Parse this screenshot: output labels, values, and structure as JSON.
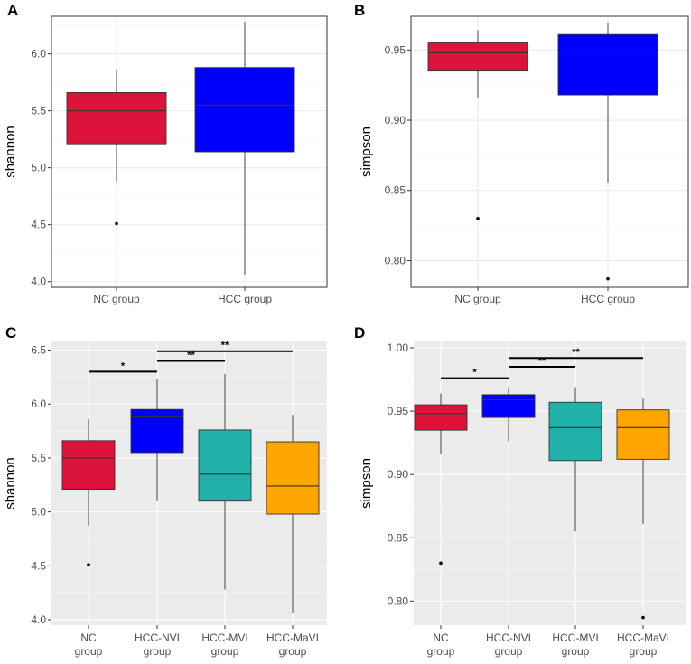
{
  "chart_data": [
    {
      "panel": "A",
      "type": "box",
      "theme": "bw",
      "ylabel": "shannon",
      "xlabel": "",
      "ylim": [
        3.95,
        6.33
      ],
      "yticks": [
        4.0,
        4.5,
        5.0,
        5.5,
        6.0
      ],
      "ytick_labels": [
        "4.0",
        "4.5",
        "5.0",
        "5.5",
        "6.0"
      ],
      "categories": [
        "NC group",
        "HCC group"
      ],
      "boxes": [
        {
          "name": "NC group",
          "color": "#DC143C",
          "whisker_low": 4.87,
          "q1": 5.21,
          "median": 5.5,
          "q3": 5.66,
          "whisker_high": 5.86,
          "outliers": [
            4.51
          ]
        },
        {
          "name": "HCC group",
          "color": "#0000FF",
          "whisker_low": 4.06,
          "q1": 5.14,
          "median": 5.55,
          "q3": 5.88,
          "whisker_high": 6.28,
          "outliers": []
        }
      ],
      "significance": []
    },
    {
      "panel": "B",
      "type": "box",
      "theme": "bw",
      "ylabel": "simpson",
      "xlabel": "",
      "ylim": [
        0.781,
        0.974
      ],
      "yticks": [
        0.8,
        0.85,
        0.9,
        0.95
      ],
      "ytick_labels": [
        "0.80",
        "0.85",
        "0.90",
        "0.95"
      ],
      "categories": [
        "NC group",
        "HCC group"
      ],
      "boxes": [
        {
          "name": "NC group",
          "color": "#DC143C",
          "whisker_low": 0.916,
          "q1": 0.935,
          "median": 0.948,
          "q3": 0.955,
          "whisker_high": 0.964,
          "outliers": [
            0.83
          ]
        },
        {
          "name": "HCC group",
          "color": "#0000FF",
          "whisker_low": 0.855,
          "q1": 0.918,
          "median": 0.949,
          "q3": 0.961,
          "whisker_high": 0.969,
          "outliers": [
            0.787
          ]
        }
      ],
      "significance": []
    },
    {
      "panel": "C",
      "type": "box",
      "theme": "gray",
      "ylabel": "shannon",
      "xlabel": "",
      "ylim": [
        3.95,
        6.58
      ],
      "yticks": [
        4.0,
        4.5,
        5.0,
        5.5,
        6.0,
        6.5
      ],
      "ytick_labels": [
        "4.0",
        "4.5",
        "5.0",
        "5.5",
        "6.0",
        "6.5"
      ],
      "categories": [
        "NC group",
        "HCC-NVI group",
        "HCC-MVI group",
        "HCC-MaVI group"
      ],
      "boxes": [
        {
          "name": "NC group",
          "line1": "NC",
          "line2": "group",
          "color": "#DC143C",
          "whisker_low": 4.87,
          "q1": 5.21,
          "median": 5.5,
          "q3": 5.66,
          "whisker_high": 5.86,
          "outliers": [
            4.51
          ]
        },
        {
          "name": "HCC-NVI group",
          "line1": "HCC-NVI",
          "line2": "group",
          "color": "#0000FF",
          "whisker_low": 5.1,
          "q1": 5.55,
          "median": 5.88,
          "q3": 5.95,
          "whisker_high": 6.23,
          "outliers": []
        },
        {
          "name": "HCC-MVI group",
          "line1": "HCC-MVI",
          "line2": "group",
          "color": "#20B2AA",
          "whisker_low": 4.28,
          "q1": 5.1,
          "median": 5.35,
          "q3": 5.76,
          "whisker_high": 6.28,
          "outliers": []
        },
        {
          "name": "HCC-MaVI group",
          "line1": "HCC-MaVI",
          "line2": "group",
          "color": "#FFA500",
          "whisker_low": 4.06,
          "q1": 4.98,
          "median": 5.24,
          "q3": 5.65,
          "whisker_high": 5.9,
          "outliers": []
        }
      ],
      "significance": [
        {
          "from": 0,
          "to": 1,
          "y": 6.3,
          "label": "*"
        },
        {
          "from": 1,
          "to": 2,
          "y": 6.4,
          "label": "**"
        },
        {
          "from": 1,
          "to": 3,
          "y": 6.49,
          "label": "**"
        }
      ]
    },
    {
      "panel": "D",
      "type": "box",
      "theme": "gray",
      "ylabel": "simpson",
      "xlabel": "",
      "ylim": [
        0.781,
        1.005
      ],
      "yticks": [
        0.8,
        0.85,
        0.9,
        0.95,
        1.0
      ],
      "ytick_labels": [
        "0.80",
        "0.85",
        "0.90",
        "0.95",
        "1.00"
      ],
      "categories": [
        "NC group",
        "HCC-NVI group",
        "HCC-MVI group",
        "HCC-MaVI group"
      ],
      "boxes": [
        {
          "name": "NC group",
          "line1": "NC",
          "line2": "group",
          "color": "#DC143C",
          "whisker_low": 0.916,
          "q1": 0.935,
          "median": 0.948,
          "q3": 0.955,
          "whisker_high": 0.964,
          "outliers": [
            0.83
          ]
        },
        {
          "name": "HCC-NVI group",
          "line1": "HCC-NVI",
          "line2": "group",
          "color": "#0000FF",
          "whisker_low": 0.926,
          "q1": 0.945,
          "median": 0.959,
          "q3": 0.963,
          "whisker_high": 0.969,
          "outliers": []
        },
        {
          "name": "HCC-MVI group",
          "line1": "HCC-MVI",
          "line2": "group",
          "color": "#20B2AA",
          "whisker_low": 0.855,
          "q1": 0.911,
          "median": 0.937,
          "q3": 0.957,
          "whisker_high": 0.969,
          "outliers": []
        },
        {
          "name": "HCC-MaVI group",
          "line1": "HCC-MaVI",
          "line2": "group",
          "color": "#FFA500",
          "whisker_low": 0.861,
          "q1": 0.912,
          "median": 0.937,
          "q3": 0.951,
          "whisker_high": 0.96,
          "outliers": [
            0.787
          ]
        }
      ],
      "significance": [
        {
          "from": 0,
          "to": 1,
          "y": 0.976,
          "label": "*"
        },
        {
          "from": 1,
          "to": 2,
          "y": 0.985,
          "label": "**"
        },
        {
          "from": 1,
          "to": 3,
          "y": 0.992,
          "label": "**"
        }
      ]
    }
  ]
}
